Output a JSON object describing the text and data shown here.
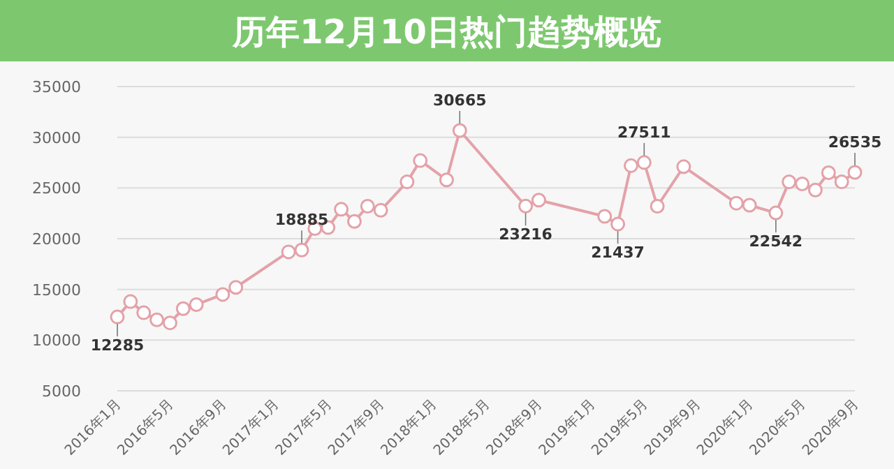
{
  "chart_data": {
    "type": "line",
    "title": "历年12月10日热门趋势概览",
    "x": [
      "2016-01",
      "2016-02",
      "2016-03",
      "2016-04",
      "2016-05",
      "2016-06",
      "2016-07",
      "2016-09",
      "2016-10",
      "2017-02",
      "2017-03",
      "2017-04",
      "2017-05",
      "2017-06",
      "2017-07",
      "2017-08",
      "2017-09",
      "2017-11",
      "2017-12",
      "2018-02",
      "2018-03",
      "2018-08",
      "2018-09",
      "2019-02",
      "2019-03",
      "2019-04",
      "2019-05",
      "2019-06",
      "2019-08",
      "2019-12",
      "2020-01",
      "2020-03",
      "2020-04",
      "2020-05",
      "2020-06",
      "2020-07",
      "2020-08",
      "2020-09"
    ],
    "series": [
      {
        "color": "#e3a2a8",
        "values": [
          12285,
          13800,
          12700,
          12000,
          11700,
          13100,
          13500,
          14500,
          15200,
          18700,
          18885,
          21000,
          21100,
          22900,
          21700,
          23200,
          22800,
          25600,
          27700,
          25800,
          30665,
          23216,
          23800,
          22200,
          21437,
          27200,
          27511,
          23200,
          27100,
          23500,
          23300,
          22542,
          25600,
          25400,
          24800,
          26500,
          25600,
          26535
        ],
        "value_labels": [
          "12285",
          null,
          null,
          null,
          null,
          null,
          null,
          null,
          null,
          null,
          "18885",
          null,
          null,
          null,
          null,
          null,
          null,
          null,
          null,
          null,
          "30665",
          "23216",
          null,
          null,
          "21437",
          null,
          "27511",
          null,
          null,
          null,
          null,
          "22542",
          null,
          null,
          null,
          null,
          null,
          "26535"
        ]
      }
    ],
    "xlim": [
      "2016-01",
      "2020-09"
    ],
    "xticks": [
      {
        "value": "2016-01",
        "label": "2016年1月"
      },
      {
        "value": "2016-05",
        "label": "2016年5月"
      },
      {
        "value": "2016-09",
        "label": "2016年9月"
      },
      {
        "value": "2017-01",
        "label": "2017年1月"
      },
      {
        "value": "2017-05",
        "label": "2017年5月"
      },
      {
        "value": "2017-09",
        "label": "2017年9月"
      },
      {
        "value": "2018-01",
        "label": "2018年1月"
      },
      {
        "value": "2018-05",
        "label": "2018年5月"
      },
      {
        "value": "2018-09",
        "label": "2018年9月"
      },
      {
        "value": "2019-01",
        "label": "2019年1月"
      },
      {
        "value": "2019-05",
        "label": "2019年5月"
      },
      {
        "value": "2019-09",
        "label": "2019年9月"
      },
      {
        "value": "2020-01",
        "label": "2020年1月"
      },
      {
        "value": "2020-05",
        "label": "2020年5月"
      },
      {
        "value": "2020-09",
        "label": "2020年9月"
      }
    ],
    "ylim": [
      5000,
      35000
    ],
    "yticks": [
      5000,
      10000,
      15000,
      20000,
      25000,
      30000,
      35000
    ],
    "grid": "y",
    "marker": "circle",
    "line_style": "solid"
  }
}
